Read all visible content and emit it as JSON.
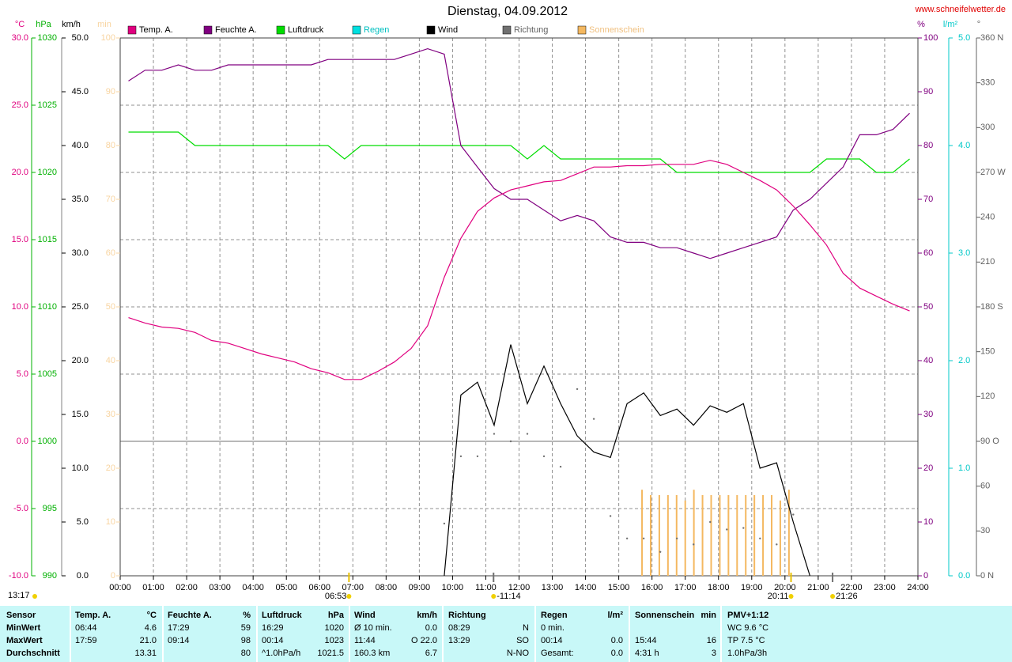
{
  "chart_data": {
    "type": "line",
    "title": "Dienstag, 04.09.2012",
    "source": "www.schneifelwetter.de",
    "left_note": "13:17",
    "x": [
      0.25,
      0.75,
      1.25,
      1.75,
      2.25,
      2.75,
      3.25,
      3.75,
      4.25,
      4.75,
      5.25,
      5.75,
      6.25,
      6.75,
      7.25,
      7.75,
      8.25,
      8.75,
      9.25,
      9.75,
      10.25,
      10.75,
      11.25,
      11.75,
      12.25,
      12.75,
      13.25,
      13.75,
      14.25,
      14.75,
      15.25,
      15.75,
      16.25,
      16.75,
      17.25,
      17.75,
      18.25,
      18.75,
      19.25,
      19.75,
      20.25,
      20.75,
      21.25,
      21.75,
      22.25,
      22.75,
      23.25,
      23.75
    ],
    "xlim": [
      0,
      24
    ],
    "xticks": [
      {
        "value": 0,
        "label": "00:00"
      },
      {
        "value": 1,
        "label": "01:00"
      },
      {
        "value": 2,
        "label": "02:00"
      },
      {
        "value": 3,
        "label": "03:00"
      },
      {
        "value": 4,
        "label": "04:00"
      },
      {
        "value": 5,
        "label": "05:00"
      },
      {
        "value": 6,
        "label": "06:00"
      },
      {
        "value": 7,
        "label": "07:00"
      },
      {
        "value": 8,
        "label": "08:00"
      },
      {
        "value": 9,
        "label": "09:00"
      },
      {
        "value": 10,
        "label": "10:00"
      },
      {
        "value": 11,
        "label": "11:00"
      },
      {
        "value": 12,
        "label": "12:00"
      },
      {
        "value": 13,
        "label": "13:00"
      },
      {
        "value": 14,
        "label": "14:00"
      },
      {
        "value": 15,
        "label": "15:00"
      },
      {
        "value": 16,
        "label": "16:00"
      },
      {
        "value": 17,
        "label": "17:00"
      },
      {
        "value": 18,
        "label": "18:00"
      },
      {
        "value": 19,
        "label": "19:00"
      },
      {
        "value": 20,
        "label": "20:00"
      },
      {
        "value": 21,
        "label": "21:00"
      },
      {
        "value": 22,
        "label": "22:00"
      },
      {
        "value": 23,
        "label": "23:00"
      },
      {
        "value": 24,
        "label": "24:00"
      }
    ],
    "grid": true,
    "axes": [
      {
        "unit": "°C",
        "color": "#e0007f",
        "lim": [
          -10,
          30
        ],
        "ticks": [
          {
            "value": 30,
            "label": "30.0"
          },
          {
            "value": 25,
            "label": "25.0"
          },
          {
            "value": 20,
            "label": "20.0"
          },
          {
            "value": 15,
            "label": "15.0"
          },
          {
            "value": 10,
            "label": "10.0"
          },
          {
            "value": 5,
            "label": "5.0"
          },
          {
            "value": 0,
            "label": "0.0"
          },
          {
            "value": -5,
            "label": "-5.0"
          },
          {
            "value": -10,
            "label": "-10.0"
          }
        ]
      },
      {
        "unit": "hPa",
        "color": "#00b000",
        "lim": [
          990,
          1030
        ],
        "ticks": [
          1030,
          1025,
          1020,
          1015,
          1010,
          1005,
          1000,
          995,
          990
        ]
      },
      {
        "unit": "km/h",
        "color": "#000000",
        "lim": [
          0,
          50
        ],
        "ticks": [
          {
            "value": 50,
            "label": "50.0"
          },
          {
            "value": 45,
            "label": "45.0"
          },
          {
            "value": 40,
            "label": "40.0"
          },
          {
            "value": 35,
            "label": "35.0"
          },
          {
            "value": 30,
            "label": "30.0"
          },
          {
            "value": 25,
            "label": "25.0"
          },
          {
            "value": 20,
            "label": "20.0"
          },
          {
            "value": 15,
            "label": "15.0"
          },
          {
            "value": 10,
            "label": "10.0"
          },
          {
            "value": 5,
            "label": "5.0"
          },
          {
            "value": 0,
            "label": "0.0"
          }
        ]
      },
      {
        "unit": "min",
        "color": "#f8d4a0",
        "lim": [
          0,
          100
        ],
        "ticks": [
          100,
          90,
          80,
          70,
          60,
          50,
          40,
          30,
          20,
          10,
          0
        ]
      },
      {
        "unit": "%",
        "color": "#800080",
        "lim": [
          0,
          100
        ],
        "ticks": [
          100,
          90,
          80,
          70,
          60,
          50,
          40,
          30,
          20,
          10,
          0
        ]
      },
      {
        "unit": "l/m²",
        "color": "#00c8c8",
        "lim": [
          0,
          5
        ],
        "ticks": [
          {
            "value": 5,
            "label": "5.0"
          },
          {
            "value": 4,
            "label": "4.0"
          },
          {
            "value": 3,
            "label": "3.0"
          },
          {
            "value": 2,
            "label": "2.0"
          },
          {
            "value": 1,
            "label": "1.0"
          },
          {
            "value": 0,
            "label": "0.0"
          }
        ]
      },
      {
        "unit": "°",
        "color": "#606060",
        "lim": [
          0,
          360
        ],
        "ticks": [
          {
            "value": 360,
            "label": "360 N"
          },
          330,
          300,
          {
            "value": 270,
            "label": "270 W"
          },
          240,
          210,
          {
            "value": 180,
            "label": "180 S"
          },
          150,
          120,
          {
            "value": 90,
            "label": "90 O"
          },
          60,
          30,
          {
            "value": 0,
            "label": "0 N"
          }
        ]
      }
    ],
    "series": [
      {
        "name": "Temp. A.",
        "color": "#e0007f",
        "axis": 0,
        "style": "line",
        "values": [
          9.2,
          8.8,
          8.5,
          8.4,
          8.1,
          7.5,
          7.3,
          6.9,
          6.5,
          6.2,
          5.9,
          5.4,
          5.1,
          4.6,
          4.6,
          5.2,
          5.9,
          6.9,
          8.6,
          12.2,
          15.1,
          17.1,
          18.1,
          18.7,
          19.0,
          19.3,
          19.4,
          19.9,
          20.4,
          20.4,
          20.5,
          20.5,
          20.6,
          20.6,
          20.6,
          20.9,
          20.6,
          20.0,
          19.4,
          18.7,
          17.5,
          16.1,
          14.6,
          12.5,
          11.4,
          10.8,
          10.2,
          9.7
        ]
      },
      {
        "name": "Feuchte A.",
        "color": "#800080",
        "axis": 4,
        "style": "line",
        "values": [
          92,
          94,
          94,
          95,
          94,
          94,
          95,
          95,
          95,
          95,
          95,
          95,
          96,
          96,
          96,
          96,
          96,
          97,
          98,
          97,
          80,
          76,
          72,
          70,
          70,
          68,
          66,
          67,
          66,
          63,
          62,
          62,
          61,
          61,
          60,
          59,
          60,
          61,
          62,
          63,
          68,
          70,
          73,
          76,
          82,
          82,
          83,
          86
        ]
      },
      {
        "name": "Luftdruck",
        "color": "#00dd00",
        "axis": 1,
        "style": "line",
        "values": [
          1023,
          1023,
          1023,
          1023,
          1022,
          1022,
          1022,
          1022,
          1022,
          1022,
          1022,
          1022,
          1022,
          1021,
          1022,
          1022,
          1022,
          1022,
          1022,
          1022,
          1022,
          1022,
          1022,
          1022,
          1021,
          1022,
          1021,
          1021,
          1021,
          1021,
          1021,
          1021,
          1021,
          1020,
          1020,
          1020,
          1020,
          1020,
          1020,
          1020,
          1020,
          1020,
          1021,
          1021,
          1021,
          1020,
          1020,
          1021
        ]
      },
      {
        "name": "Regen",
        "color": "#00e0e0",
        "axis": 5,
        "style": "line",
        "x": [],
        "values": []
      },
      {
        "name": "Wind",
        "color": "#000000",
        "axis": 2,
        "style": "line",
        "values": [
          null,
          null,
          null,
          null,
          null,
          null,
          null,
          null,
          null,
          null,
          null,
          null,
          null,
          null,
          null,
          null,
          null,
          null,
          null,
          0,
          16.8,
          18,
          14,
          21.5,
          16,
          19.5,
          16,
          13,
          11.5,
          11,
          16,
          17,
          14.9,
          15.5,
          14,
          15.8,
          15.2,
          16,
          10,
          10.5,
          5,
          0,
          null,
          null,
          null,
          null,
          null,
          null
        ]
      },
      {
        "name": "Richtung",
        "color": "#707070",
        "axis": 6,
        "style": "dots",
        "values": [
          null,
          null,
          null,
          null,
          null,
          null,
          null,
          null,
          null,
          null,
          null,
          null,
          null,
          null,
          null,
          null,
          null,
          null,
          null,
          35,
          80,
          80,
          95,
          90,
          95,
          80,
          73,
          125,
          105,
          40,
          25,
          25,
          16,
          25,
          21,
          36,
          31,
          32,
          25,
          21,
          41,
          null,
          null,
          null,
          null,
          null,
          null,
          null
        ]
      },
      {
        "name": "Sonnenschein",
        "color": "#f4b860",
        "axis": 3,
        "style": "bars",
        "x": [
          15.7,
          15.96,
          16.22,
          16.48,
          16.74,
          17.0,
          17.26,
          17.52,
          17.78,
          18.04,
          18.3,
          18.56,
          18.82,
          19.08,
          19.34,
          19.6,
          19.86,
          20.12
        ],
        "values": [
          16,
          15,
          15,
          15,
          15,
          14,
          16,
          15,
          15,
          15,
          15,
          15,
          15,
          15,
          15,
          15,
          14,
          16
        ]
      }
    ],
    "annotations": [
      {
        "x": 6.883,
        "label": "06:53"
      },
      {
        "x": 11.233,
        "label": "-11:14"
      },
      {
        "x": 20.183,
        "label": "20:11"
      },
      {
        "x": 21.433,
        "label": "21:26"
      }
    ]
  },
  "table": {
    "header": [
      [
        "Sensor"
      ],
      [
        "Temp. A.",
        "°C"
      ],
      [
        "Feuchte A.",
        "%"
      ],
      [
        "Luftdruck",
        "hPa"
      ],
      [
        "Wind",
        "km/h"
      ],
      [
        "Richtung"
      ],
      [
        "Regen",
        "l/m²"
      ],
      [
        "Sonnenschein",
        "min"
      ],
      [
        "PMV+1:12"
      ]
    ],
    "rows": [
      [
        [
          "MinWert"
        ],
        [
          "06:44",
          "4.6"
        ],
        [
          "17:29",
          "59"
        ],
        [
          "16:29",
          "1020"
        ],
        [
          "Ø 10 min.",
          "0.0"
        ],
        [
          "08:29",
          "N"
        ],
        [
          "0 min.",
          null
        ],
        null,
        [
          "WC 9.6 °C"
        ]
      ],
      [
        [
          "MaxWert"
        ],
        [
          "17:59",
          "21.0"
        ],
        [
          "09:14",
          "98"
        ],
        [
          "00:14",
          "1023"
        ],
        [
          "11:44",
          "O 22.0"
        ],
        [
          "13:29",
          "SO"
        ],
        [
          "00:14",
          "0.0"
        ],
        [
          "15:44",
          "16"
        ],
        [
          "TP 7.5 °C"
        ]
      ],
      [
        [
          "Durchschnitt"
        ],
        [
          null,
          "13.31"
        ],
        [
          null,
          "80"
        ],
        [
          "^1.0hPa/h",
          "1021.5"
        ],
        [
          "160.3 km",
          "6.7"
        ],
        [
          null,
          "N-NO"
        ],
        [
          "Gesamt:",
          "0.0"
        ],
        [
          "4:31 h",
          "3"
        ],
        [
          "1.0hPa/3h"
        ]
      ]
    ]
  }
}
